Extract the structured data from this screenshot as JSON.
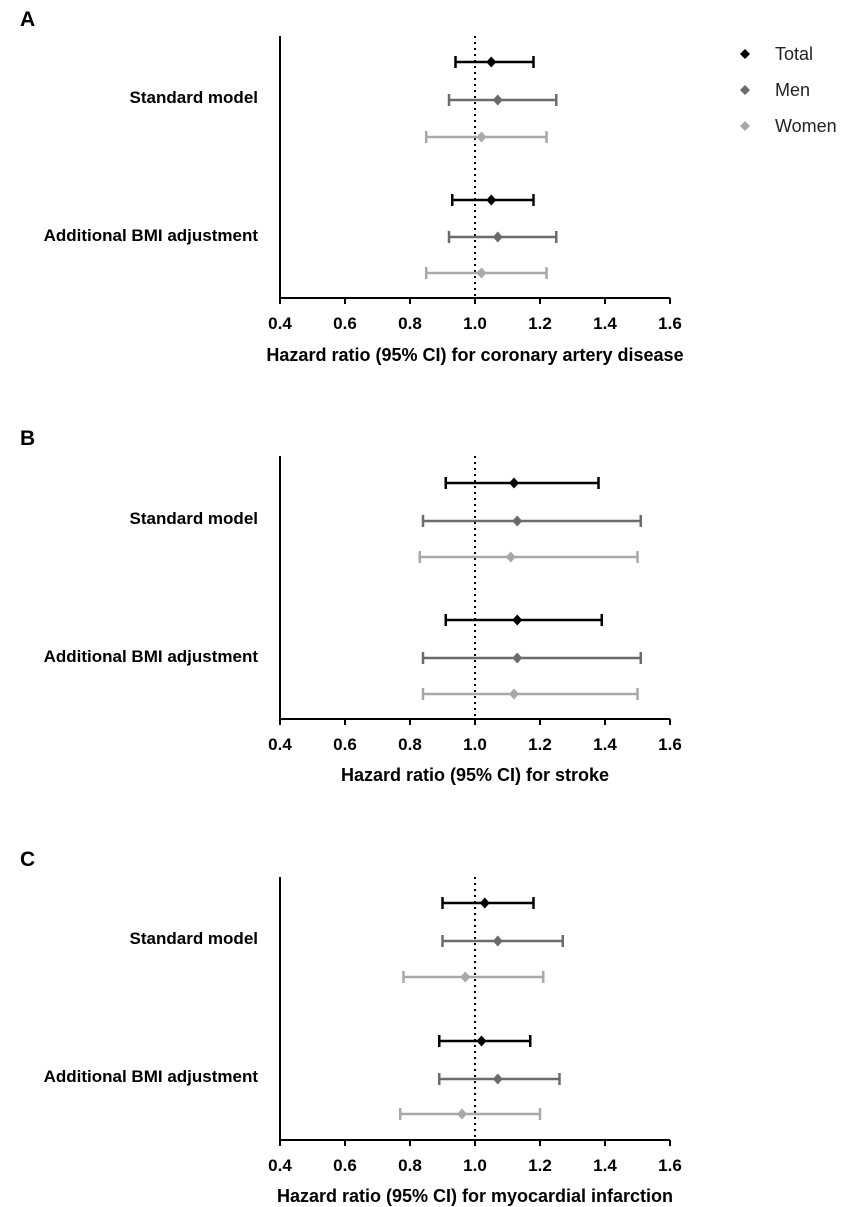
{
  "legend": {
    "position": "top-right",
    "items": [
      {
        "label": "Total",
        "color": "#000000"
      },
      {
        "label": "Men",
        "color": "#6b6b6b"
      },
      {
        "label": "Women",
        "color": "#a8a8a8"
      }
    ]
  },
  "chart_data": [
    {
      "type": "forest",
      "panel": "A",
      "xlabel": "Hazard ratio (95% CI) for coronary artery disease",
      "xlim": [
        0.4,
        1.6
      ],
      "xticks": [
        "0.4",
        "0.6",
        "0.8",
        "1.0",
        "1.2",
        "1.4",
        "1.6"
      ],
      "reference_line": 1.0,
      "groups": [
        {
          "label": "Standard model",
          "estimates": [
            {
              "series": "Total",
              "hr": 1.05,
              "lower": 0.94,
              "upper": 1.18
            },
            {
              "series": "Men",
              "hr": 1.07,
              "lower": 0.92,
              "upper": 1.25
            },
            {
              "series": "Women",
              "hr": 1.02,
              "lower": 0.85,
              "upper": 1.22
            }
          ]
        },
        {
          "label": "Additional BMI adjustment",
          "estimates": [
            {
              "series": "Total",
              "hr": 1.05,
              "lower": 0.93,
              "upper": 1.18
            },
            {
              "series": "Men",
              "hr": 1.07,
              "lower": 0.92,
              "upper": 1.25
            },
            {
              "series": "Women",
              "hr": 1.02,
              "lower": 0.85,
              "upper": 1.22
            }
          ]
        }
      ]
    },
    {
      "type": "forest",
      "panel": "B",
      "xlabel": "Hazard ratio (95% CI) for stroke",
      "xlim": [
        0.4,
        1.6
      ],
      "xticks": [
        "0.4",
        "0.6",
        "0.8",
        "1.0",
        "1.2",
        "1.4",
        "1.6"
      ],
      "reference_line": 1.0,
      "groups": [
        {
          "label": "Standard model",
          "estimates": [
            {
              "series": "Total",
              "hr": 1.12,
              "lower": 0.91,
              "upper": 1.38
            },
            {
              "series": "Men",
              "hr": 1.13,
              "lower": 0.84,
              "upper": 1.51
            },
            {
              "series": "Women",
              "hr": 1.11,
              "lower": 0.83,
              "upper": 1.5
            }
          ]
        },
        {
          "label": "Additional BMI adjustment",
          "estimates": [
            {
              "series": "Total",
              "hr": 1.13,
              "lower": 0.91,
              "upper": 1.39
            },
            {
              "series": "Men",
              "hr": 1.13,
              "lower": 0.84,
              "upper": 1.51
            },
            {
              "series": "Women",
              "hr": 1.12,
              "lower": 0.84,
              "upper": 1.5
            }
          ]
        }
      ]
    },
    {
      "type": "forest",
      "panel": "C",
      "xlabel": "Hazard ratio (95% CI) for myocardial infarction",
      "xlim": [
        0.4,
        1.6
      ],
      "xticks": [
        "0.4",
        "0.6",
        "0.8",
        "1.0",
        "1.2",
        "1.4",
        "1.6"
      ],
      "reference_line": 1.0,
      "groups": [
        {
          "label": "Standard model",
          "estimates": [
            {
              "series": "Total",
              "hr": 1.03,
              "lower": 0.9,
              "upper": 1.18
            },
            {
              "series": "Men",
              "hr": 1.07,
              "lower": 0.9,
              "upper": 1.27
            },
            {
              "series": "Women",
              "hr": 0.97,
              "lower": 0.78,
              "upper": 1.21
            }
          ]
        },
        {
          "label": "Additional BMI adjustment",
          "estimates": [
            {
              "series": "Total",
              "hr": 1.02,
              "lower": 0.89,
              "upper": 1.17
            },
            {
              "series": "Men",
              "hr": 1.07,
              "lower": 0.89,
              "upper": 1.26
            },
            {
              "series": "Women",
              "hr": 0.96,
              "lower": 0.77,
              "upper": 1.2
            }
          ]
        }
      ]
    }
  ]
}
